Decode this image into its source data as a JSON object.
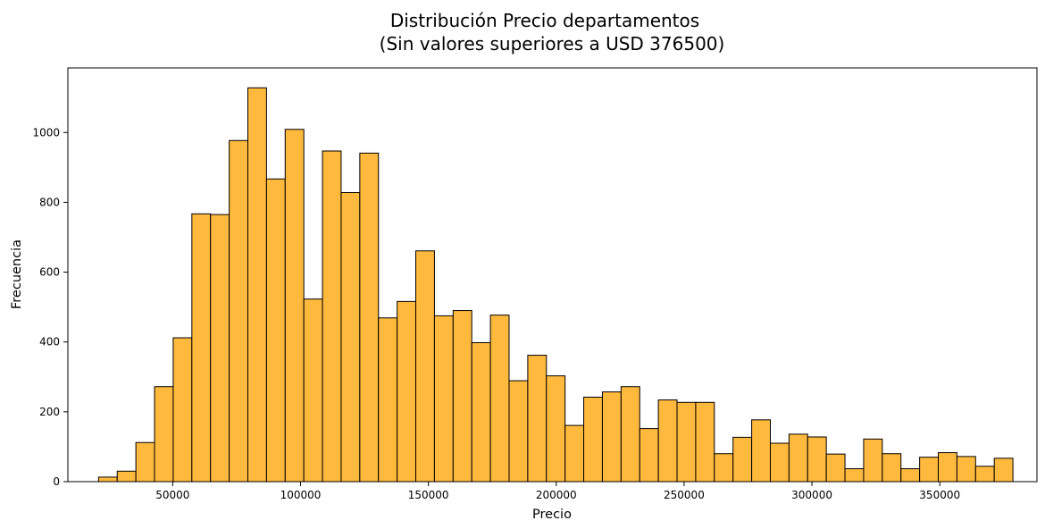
{
  "chart_data": {
    "type": "bar",
    "title": "Distribución Precio departamentos",
    "subtitle": "(Sin valores superiores a USD 376500)",
    "xlabel": "Precio",
    "ylabel": "Frecuencia",
    "xlim": [
      9000,
      388000
    ],
    "ylim": [
      0,
      1185
    ],
    "bin_width": 7298,
    "bin_start": 21000,
    "values": [
      13,
      30,
      112,
      272,
      412,
      767,
      765,
      977,
      1128,
      867,
      1009,
      523,
      947,
      828,
      941,
      469,
      516,
      661,
      475,
      490,
      398,
      477,
      289,
      362,
      303,
      161,
      242,
      257,
      272,
      152,
      234,
      227,
      227,
      80,
      127,
      177,
      110,
      136,
      128,
      79,
      37,
      122,
      80,
      37,
      70,
      83,
      72,
      44,
      67
    ],
    "xticks": [
      50000,
      100000,
      150000,
      200000,
      250000,
      300000,
      350000
    ],
    "xtick_labels": [
      "50000",
      "100000",
      "150000",
      "200000",
      "250000",
      "300000",
      "350000"
    ],
    "yticks": [
      0,
      200,
      400,
      600,
      800,
      1000
    ],
    "ytick_labels": [
      "0",
      "200",
      "400",
      "600",
      "800",
      "1000"
    ],
    "bar_color": "#ffb93d",
    "edge_color": "#000000",
    "grid": false,
    "legend": "none"
  }
}
